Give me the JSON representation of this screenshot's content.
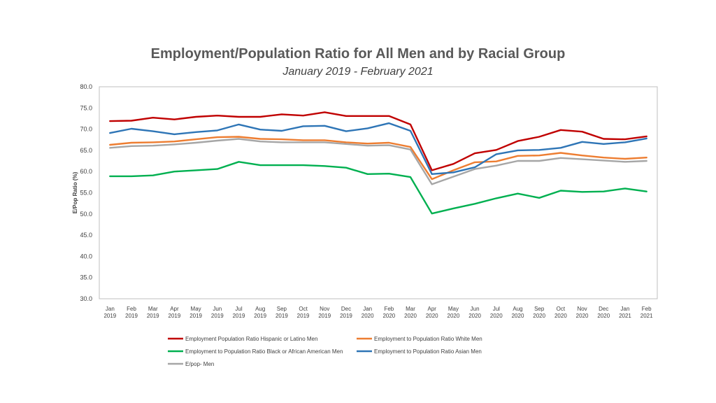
{
  "chart_data": {
    "type": "line",
    "title": "Employment/Population Ratio for All Men and by Racial Group",
    "subtitle": "January 2019 - February 2021",
    "xlabel": "",
    "ylabel": "E/Pop Ratio (%)",
    "ylim": [
      30,
      80
    ],
    "yticks": [
      "30.0",
      "35.0",
      "40.0",
      "45.0",
      "50.0",
      "55.0",
      "60.0",
      "65.0",
      "70.0",
      "75.0",
      "80.0"
    ],
    "grid": false,
    "legend_position": "bottom",
    "categories": [
      [
        "Jan",
        "2019"
      ],
      [
        "Feb",
        "2019"
      ],
      [
        "Mar",
        "2019"
      ],
      [
        "Apr",
        "2019"
      ],
      [
        "May",
        "2019"
      ],
      [
        "Jun",
        "2019"
      ],
      [
        "Jul",
        "2019"
      ],
      [
        "Aug",
        "2019"
      ],
      [
        "Sep",
        "2019"
      ],
      [
        "Oct",
        "2019"
      ],
      [
        "Nov",
        "2019"
      ],
      [
        "Dec",
        "2019"
      ],
      [
        "Jan",
        "2020"
      ],
      [
        "Feb",
        "2020"
      ],
      [
        "Mar",
        "2020"
      ],
      [
        "Apr",
        "2020"
      ],
      [
        "May",
        "2020"
      ],
      [
        "Jun",
        "2020"
      ],
      [
        "Jul",
        "2020"
      ],
      [
        "Aug",
        "2020"
      ],
      [
        "Sep",
        "2020"
      ],
      [
        "Oct",
        "2020"
      ],
      [
        "Nov",
        "2020"
      ],
      [
        "Dec",
        "2020"
      ],
      [
        "Jan",
        "2021"
      ],
      [
        "Feb",
        "2021"
      ]
    ],
    "series": [
      {
        "name": "Employment Population Ratio Hispanic or Latino Men",
        "color": "#C00000",
        "values": [
          71.9,
          72.0,
          72.7,
          72.3,
          72.9,
          73.2,
          72.9,
          72.9,
          73.5,
          73.2,
          74.0,
          73.1,
          73.1,
          73.1,
          71.1,
          60.3,
          61.8,
          64.3,
          65.1,
          67.2,
          68.2,
          69.8,
          69.4,
          67.7,
          67.6,
          68.3
        ]
      },
      {
        "name": "Employment to Population Ratio White Men",
        "color": "#ED7D31",
        "values": [
          66.3,
          66.8,
          66.9,
          67.1,
          67.6,
          68.1,
          68.2,
          67.7,
          67.6,
          67.4,
          67.4,
          66.9,
          66.6,
          66.8,
          65.8,
          58.2,
          60.3,
          62.2,
          62.4,
          63.7,
          63.8,
          64.4,
          63.8,
          63.3,
          63.0,
          63.3
        ]
      },
      {
        "name": "Employment to Population Ratio Black or African American Men",
        "color": "#00B050",
        "values": [
          58.9,
          58.9,
          59.1,
          60.0,
          60.3,
          60.6,
          62.3,
          61.5,
          61.5,
          61.5,
          61.3,
          60.9,
          59.4,
          59.5,
          58.7,
          50.1,
          51.3,
          52.4,
          53.7,
          54.8,
          53.8,
          55.5,
          55.2,
          55.3,
          56.0,
          55.3
        ]
      },
      {
        "name": "Employment to Population Ratio Asian Men",
        "color": "#2E75B6",
        "values": [
          69.1,
          70.1,
          69.5,
          68.8,
          69.3,
          69.7,
          71.1,
          69.9,
          69.6,
          70.7,
          70.8,
          69.5,
          70.2,
          71.4,
          69.6,
          59.4,
          59.8,
          61.0,
          64.1,
          65.0,
          65.1,
          65.6,
          67.0,
          66.5,
          66.9,
          67.8
        ]
      },
      {
        "name": "E/pop- Men",
        "color": "#A6A6A6",
        "values": [
          65.6,
          66.0,
          66.1,
          66.4,
          66.8,
          67.3,
          67.7,
          67.1,
          66.9,
          66.9,
          66.9,
          66.5,
          66.1,
          66.2,
          65.2,
          57.0,
          58.8,
          60.6,
          61.4,
          62.5,
          62.5,
          63.2,
          62.9,
          62.6,
          62.3,
          62.5
        ]
      }
    ]
  }
}
